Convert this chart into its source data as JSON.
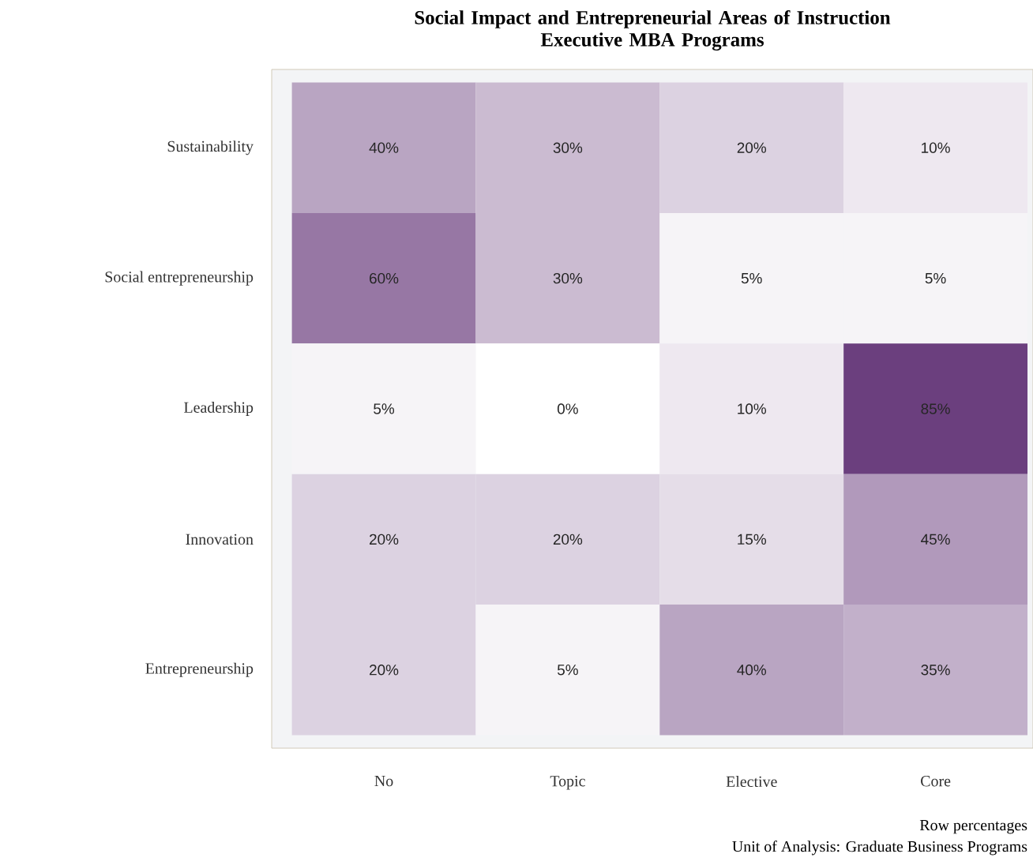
{
  "chart_data": {
    "type": "heatmap",
    "title": "Social Impact and Entrepreneurial Areas of Instruction\nExecutive MBA Programs",
    "categories": [
      "No",
      "Topic",
      "Elective",
      "Core"
    ],
    "y_categories": [
      "Sustainability",
      "Social entrepreneurship",
      "Leadership",
      "Innovation",
      "Entrepreneurship"
    ],
    "cells": [
      [
        40,
        30,
        20,
        10
      ],
      [
        60,
        30,
        5,
        5
      ],
      [
        5,
        0,
        10,
        85
      ],
      [
        20,
        20,
        15,
        45
      ],
      [
        20,
        5,
        40,
        35
      ]
    ],
    "cell_labels": [
      [
        "40%",
        "30%",
        "20%",
        "10%"
      ],
      [
        "60%",
        "30%",
        "5%",
        "5%"
      ],
      [
        "5%",
        "0%",
        "10%",
        "85%"
      ],
      [
        "20%",
        "20%",
        "15%",
        "45%"
      ],
      [
        "20%",
        "5%",
        "40%",
        "35%"
      ]
    ],
    "annotations": [
      "Row percentages",
      "Unit of Analysis: Graduate Business Programs"
    ]
  }
}
